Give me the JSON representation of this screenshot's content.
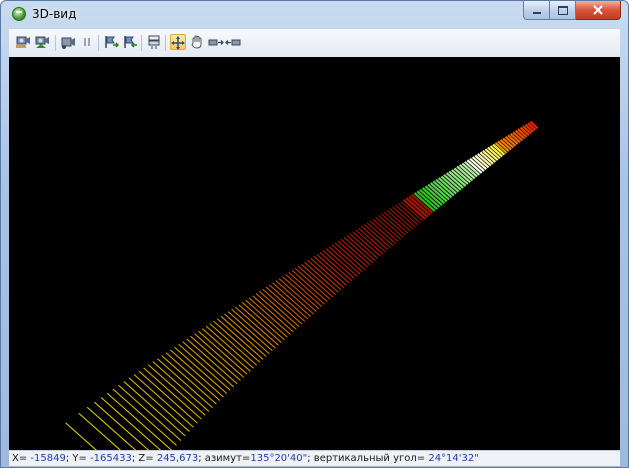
{
  "window": {
    "title": "3D-вид"
  },
  "toolbar": {
    "buttons": [
      {
        "name": "camera-view-1-icon"
      },
      {
        "name": "camera-view-2-icon"
      },
      {
        "name": "record-icon"
      },
      {
        "name": "pause-icon"
      },
      {
        "name": "flag-forward-icon"
      },
      {
        "name": "flag-back-icon"
      },
      {
        "name": "layers-icon"
      },
      {
        "name": "move-cross-icon",
        "active": true
      },
      {
        "name": "hand-pan-icon"
      },
      {
        "name": "step-right-icon"
      },
      {
        "name": "step-left-icon"
      }
    ]
  },
  "status": {
    "x_label": "X= ",
    "x_value": "-15849",
    "y_label": "; Y= ",
    "y_value": "-165433",
    "z_label": "; Z= ",
    "z_value": "245,673",
    "azimuth_label": "; азимут=",
    "azimuth_value": "135°20'40\"",
    "vangle_label": "; вертикальный угол= ",
    "vangle_value": "24°14'32\""
  },
  "colors": {
    "accent": "#f7c95b",
    "background3d": "#000000",
    "near": "#e8e000",
    "mid": "#cc2200",
    "far": "#11aa11"
  }
}
